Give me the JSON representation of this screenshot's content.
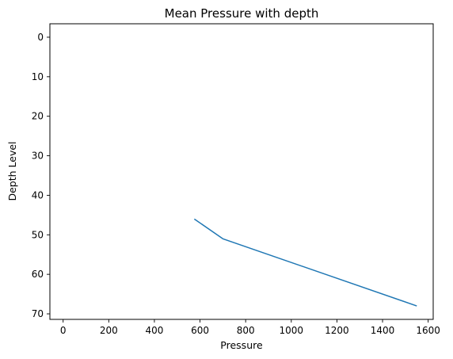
{
  "chart_data": {
    "type": "line",
    "title": "Mean Pressure with depth",
    "xlabel": "Pressure",
    "ylabel": "Depth Level",
    "xlim": [
      -58,
      1622
    ],
    "ylim": [
      71.4,
      -3.4
    ],
    "y_inverted": true,
    "grid": false,
    "x_ticks": [
      0,
      200,
      400,
      600,
      800,
      1000,
      1200,
      1400,
      1600
    ],
    "y_ticks": [
      0,
      10,
      20,
      30,
      40,
      50,
      60,
      70
    ],
    "series": [
      {
        "color": "#1f77b4",
        "x": [
          575,
          700,
          1550
        ],
        "y": [
          46,
          51,
          68
        ]
      }
    ]
  }
}
